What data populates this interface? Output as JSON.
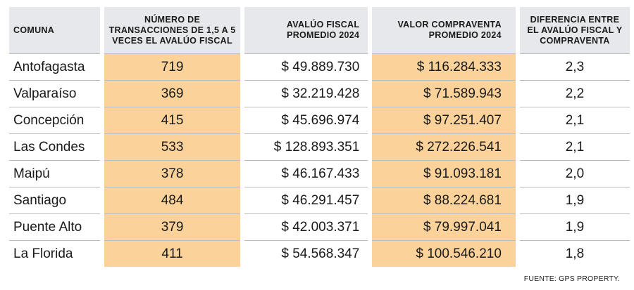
{
  "table": {
    "headers": [
      "COMUNA",
      "NÚMERO DE TRANSACCIONES DE 1,5 A 5 VECES EL AVALÚO FISCAL",
      "AVALÚO FISCAL PROMEDIO 2024",
      "VALOR COMPRAVENTA PROMEDIO 2024",
      "DIFERENCIA ENTRE EL AVALÚO FISCAL Y COMPRAVENTA"
    ],
    "rows": [
      [
        "Antofagasta",
        "719",
        "$ 49.889.730",
        "$ 116.284.333",
        "2,3"
      ],
      [
        "Valparaíso",
        "369",
        "$ 32.219.428",
        "$ 71.589.943",
        "2,2"
      ],
      [
        "Concepción",
        "415",
        "$ 45.696.974",
        "$ 97.251.407",
        "2,1"
      ],
      [
        "Las Condes",
        "533",
        "$ 128.893.351",
        "$ 272.226.541",
        "2,1"
      ],
      [
        "Maipú",
        "378",
        "$ 46.167.433",
        "$ 91.093.181",
        "2,0"
      ],
      [
        "Santiago",
        "484",
        "$ 46.291.457",
        "$ 88.224.681",
        "1,9"
      ],
      [
        "Puente Alto",
        "379",
        "$ 42.003.371",
        "$ 79.997.041",
        "1,9"
      ],
      [
        "La Florida",
        "411",
        "$ 54.568.347",
        "$ 100.546.210",
        "1,8"
      ]
    ]
  },
  "source": "FUENTE: GPS PROPERTY.",
  "colors": {
    "header_bg": "#e6e8eb",
    "highlight": "#fbd39a",
    "rule": "#b9bcc0"
  }
}
